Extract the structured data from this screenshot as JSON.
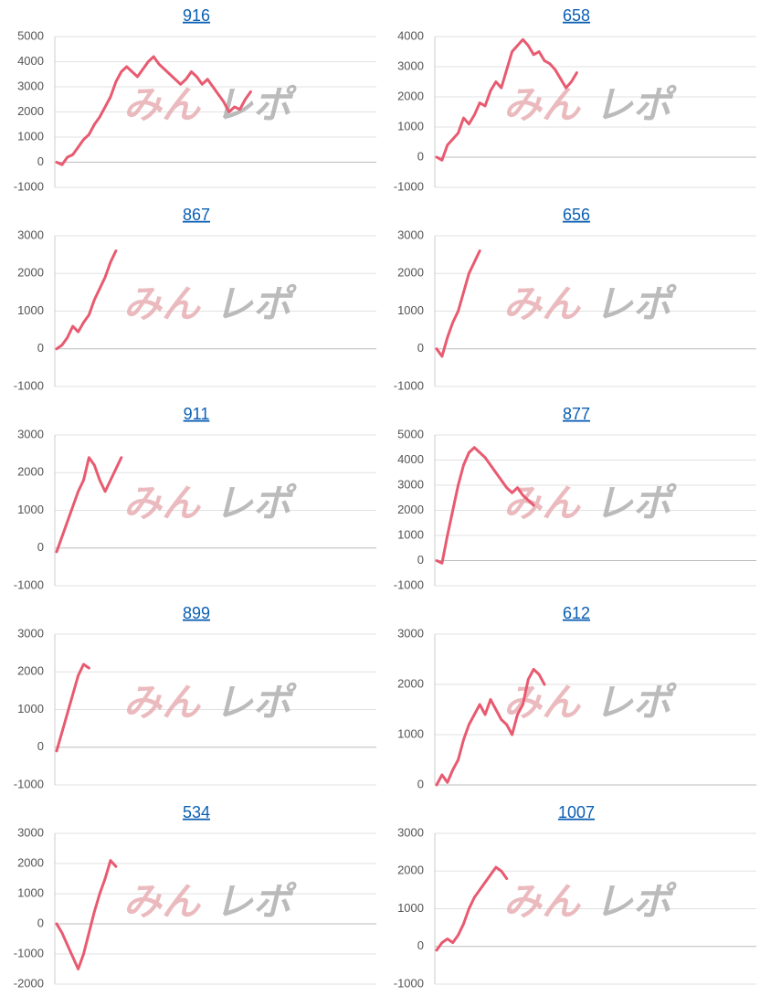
{
  "watermark": [
    "みん",
    "レポ"
  ],
  "chart_data": [
    {
      "type": "line",
      "title": "916",
      "color": "#e85a70",
      "ylim": [
        -1000,
        5000
      ],
      "yticks": [
        -1000,
        0,
        1000,
        2000,
        3000,
        4000,
        5000
      ],
      "grid": true,
      "values": [
        0,
        -100,
        200,
        300,
        600,
        900,
        1100,
        1500,
        1800,
        2200,
        2600,
        3200,
        3600,
        3800,
        3600,
        3400,
        3700,
        4000,
        4200,
        3900,
        3700,
        3500,
        3300,
        3100,
        3300,
        3600,
        3400,
        3100,
        3300,
        3000,
        2700,
        2400,
        2000,
        2200,
        2100,
        2500,
        2800
      ]
    },
    {
      "type": "line",
      "title": "658",
      "color": "#e85a70",
      "ylim": [
        -1000,
        4000
      ],
      "yticks": [
        -1000,
        0,
        1000,
        2000,
        3000,
        4000
      ],
      "grid": true,
      "values": [
        0,
        -100,
        400,
        600,
        800,
        1300,
        1100,
        1400,
        1800,
        1700,
        2200,
        2500,
        2300,
        2900,
        3500,
        3700,
        3900,
        3700,
        3400,
        3500,
        3200,
        3100,
        2900,
        2600,
        2300,
        2500,
        2800
      ]
    },
    {
      "type": "line",
      "title": "867",
      "color": "#e85a70",
      "ylim": [
        -1000,
        3000
      ],
      "yticks": [
        -1000,
        0,
        1000,
        2000,
        3000
      ],
      "grid": true,
      "values": [
        0,
        100,
        300,
        600,
        450,
        700,
        900,
        1300,
        1600,
        1900,
        2300,
        2600
      ]
    },
    {
      "type": "line",
      "title": "656",
      "color": "#e85a70",
      "ylim": [
        -1000,
        3000
      ],
      "yticks": [
        -1000,
        0,
        1000,
        2000,
        3000
      ],
      "grid": true,
      "values": [
        0,
        -200,
        300,
        700,
        1000,
        1500,
        2000,
        2300,
        2600
      ]
    },
    {
      "type": "line",
      "title": "911",
      "color": "#e85a70",
      "ylim": [
        -1000,
        3000
      ],
      "yticks": [
        -1000,
        0,
        1000,
        2000,
        3000
      ],
      "grid": true,
      "values": [
        -100,
        300,
        700,
        1100,
        1500,
        1800,
        2400,
        2200,
        1800,
        1500,
        1800,
        2100,
        2400
      ]
    },
    {
      "type": "line",
      "title": "877",
      "color": "#e85a70",
      "ylim": [
        -1000,
        5000
      ],
      "yticks": [
        -1000,
        0,
        1000,
        2000,
        3000,
        4000,
        5000
      ],
      "grid": true,
      "values": [
        0,
        -100,
        1000,
        2000,
        3000,
        3800,
        4300,
        4500,
        4300,
        4100,
        3800,
        3500,
        3200,
        2900,
        2700,
        2900,
        2600,
        2400,
        2200
      ]
    },
    {
      "type": "line",
      "title": "899",
      "color": "#e85a70",
      "ylim": [
        -1000,
        3000
      ],
      "yticks": [
        -1000,
        0,
        1000,
        2000,
        3000
      ],
      "grid": true,
      "values": [
        -100,
        400,
        900,
        1400,
        1900,
        2200,
        2100
      ]
    },
    {
      "type": "line",
      "title": "612",
      "color": "#e85a70",
      "ylim": [
        0,
        3000
      ],
      "yticks": [
        0,
        1000,
        2000,
        3000
      ],
      "grid": true,
      "values": [
        0,
        200,
        50,
        300,
        500,
        900,
        1200,
        1400,
        1600,
        1400,
        1700,
        1500,
        1300,
        1200,
        1000,
        1400,
        1600,
        2100,
        2300,
        2200,
        2000
      ]
    },
    {
      "type": "line",
      "title": "534",
      "color": "#e85a70",
      "ylim": [
        -2000,
        3000
      ],
      "yticks": [
        -2000,
        -1000,
        0,
        1000,
        2000,
        3000
      ],
      "grid": true,
      "values": [
        0,
        -300,
        -700,
        -1100,
        -1500,
        -1000,
        -300,
        400,
        1000,
        1500,
        2100,
        1900
      ]
    },
    {
      "type": "line",
      "title": "1007",
      "color": "#e85a70",
      "ylim": [
        -1000,
        3000
      ],
      "yticks": [
        -1000,
        0,
        1000,
        2000,
        3000
      ],
      "grid": true,
      "values": [
        -100,
        100,
        200,
        100,
        300,
        600,
        1000,
        1300,
        1500,
        1700,
        1900,
        2100,
        2000,
        1800
      ]
    }
  ]
}
